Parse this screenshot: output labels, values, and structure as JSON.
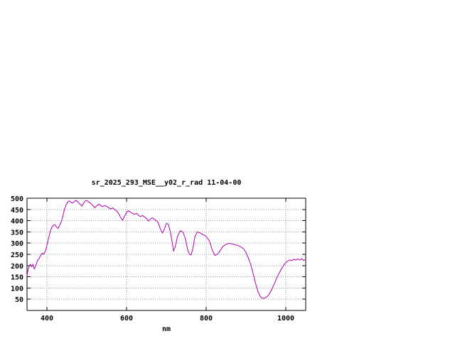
{
  "page": {
    "background": "#ffffff"
  },
  "chart_data": {
    "type": "line",
    "title": "sr_2025_293_MSE__y02_r_rad 11-04-00",
    "xlabel": "nm",
    "ylabel": "",
    "xlim": [
      350,
      1050
    ],
    "ylim": [
      0,
      500
    ],
    "xticks": [
      400,
      600,
      800,
      1000
    ],
    "yticks": [
      50,
      100,
      150,
      200,
      250,
      300,
      350,
      400,
      450,
      500
    ],
    "grid": true,
    "legend_position": "none",
    "line_color": "#b000b0",
    "axis_color": "#000000",
    "grid_color": "#9a9a9a",
    "series": [
      {
        "name": "sr_2025_293_MSE__y02_r_rad",
        "points": [
          [
            350,
            155
          ],
          [
            353,
            185
          ],
          [
            356,
            200
          ],
          [
            359,
            205
          ],
          [
            362,
            195
          ],
          [
            365,
            205
          ],
          [
            368,
            185
          ],
          [
            371,
            195
          ],
          [
            374,
            210
          ],
          [
            377,
            225
          ],
          [
            380,
            230
          ],
          [
            384,
            245
          ],
          [
            388,
            255
          ],
          [
            392,
            250
          ],
          [
            396,
            265
          ],
          [
            400,
            290
          ],
          [
            404,
            320
          ],
          [
            408,
            350
          ],
          [
            412,
            370
          ],
          [
            416,
            380
          ],
          [
            420,
            382
          ],
          [
            424,
            372
          ],
          [
            428,
            365
          ],
          [
            432,
            380
          ],
          [
            436,
            395
          ],
          [
            440,
            420
          ],
          [
            444,
            450
          ],
          [
            448,
            470
          ],
          [
            452,
            482
          ],
          [
            456,
            488
          ],
          [
            460,
            483
          ],
          [
            464,
            478
          ],
          [
            468,
            484
          ],
          [
            472,
            490
          ],
          [
            476,
            487
          ],
          [
            480,
            478
          ],
          [
            484,
            472
          ],
          [
            488,
            465
          ],
          [
            492,
            478
          ],
          [
            496,
            488
          ],
          [
            500,
            490
          ],
          [
            505,
            484
          ],
          [
            510,
            477
          ],
          [
            515,
            468
          ],
          [
            520,
            458
          ],
          [
            525,
            466
          ],
          [
            530,
            473
          ],
          [
            535,
            468
          ],
          [
            540,
            462
          ],
          [
            545,
            468
          ],
          [
            550,
            464
          ],
          [
            555,
            458
          ],
          [
            560,
            452
          ],
          [
            565,
            457
          ],
          [
            570,
            450
          ],
          [
            575,
            444
          ],
          [
            580,
            432
          ],
          [
            585,
            415
          ],
          [
            590,
            402
          ],
          [
            595,
            420
          ],
          [
            600,
            438
          ],
          [
            605,
            444
          ],
          [
            610,
            438
          ],
          [
            615,
            432
          ],
          [
            620,
            428
          ],
          [
            625,
            433
          ],
          [
            630,
            424
          ],
          [
            635,
            418
          ],
          [
            640,
            423
          ],
          [
            645,
            417
          ],
          [
            650,
            410
          ],
          [
            655,
            398
          ],
          [
            660,
            408
          ],
          [
            665,
            412
          ],
          [
            670,
            406
          ],
          [
            675,
            400
          ],
          [
            680,
            390
          ],
          [
            685,
            362
          ],
          [
            690,
            345
          ],
          [
            695,
            362
          ],
          [
            700,
            388
          ],
          [
            705,
            384
          ],
          [
            710,
            350
          ],
          [
            715,
            300
          ],
          [
            718,
            265
          ],
          [
            722,
            282
          ],
          [
            728,
            330
          ],
          [
            735,
            355
          ],
          [
            742,
            348
          ],
          [
            748,
            318
          ],
          [
            754,
            268
          ],
          [
            758,
            250
          ],
          [
            762,
            248
          ],
          [
            766,
            272
          ],
          [
            772,
            330
          ],
          [
            778,
            350
          ],
          [
            785,
            345
          ],
          [
            792,
            338
          ],
          [
            800,
            330
          ],
          [
            808,
            310
          ],
          [
            815,
            270
          ],
          [
            822,
            245
          ],
          [
            828,
            250
          ],
          [
            835,
            266
          ],
          [
            842,
            285
          ],
          [
            850,
            295
          ],
          [
            858,
            298
          ],
          [
            866,
            296
          ],
          [
            874,
            292
          ],
          [
            882,
            288
          ],
          [
            890,
            280
          ],
          [
            895,
            272
          ],
          [
            900,
            258
          ],
          [
            905,
            238
          ],
          [
            910,
            215
          ],
          [
            915,
            185
          ],
          [
            920,
            150
          ],
          [
            925,
            115
          ],
          [
            930,
            85
          ],
          [
            935,
            65
          ],
          [
            940,
            55
          ],
          [
            945,
            54
          ],
          [
            950,
            58
          ],
          [
            955,
            65
          ],
          [
            960,
            78
          ],
          [
            965,
            95
          ],
          [
            970,
            115
          ],
          [
            975,
            135
          ],
          [
            980,
            155
          ],
          [
            985,
            172
          ],
          [
            990,
            188
          ],
          [
            995,
            202
          ],
          [
            1000,
            213
          ],
          [
            1005,
            220
          ],
          [
            1010,
            225
          ],
          [
            1015,
            222
          ],
          [
            1020,
            228
          ],
          [
            1025,
            224
          ],
          [
            1030,
            229
          ],
          [
            1035,
            225
          ],
          [
            1040,
            230
          ],
          [
            1045,
            222
          ],
          [
            1050,
            228
          ]
        ]
      }
    ]
  }
}
